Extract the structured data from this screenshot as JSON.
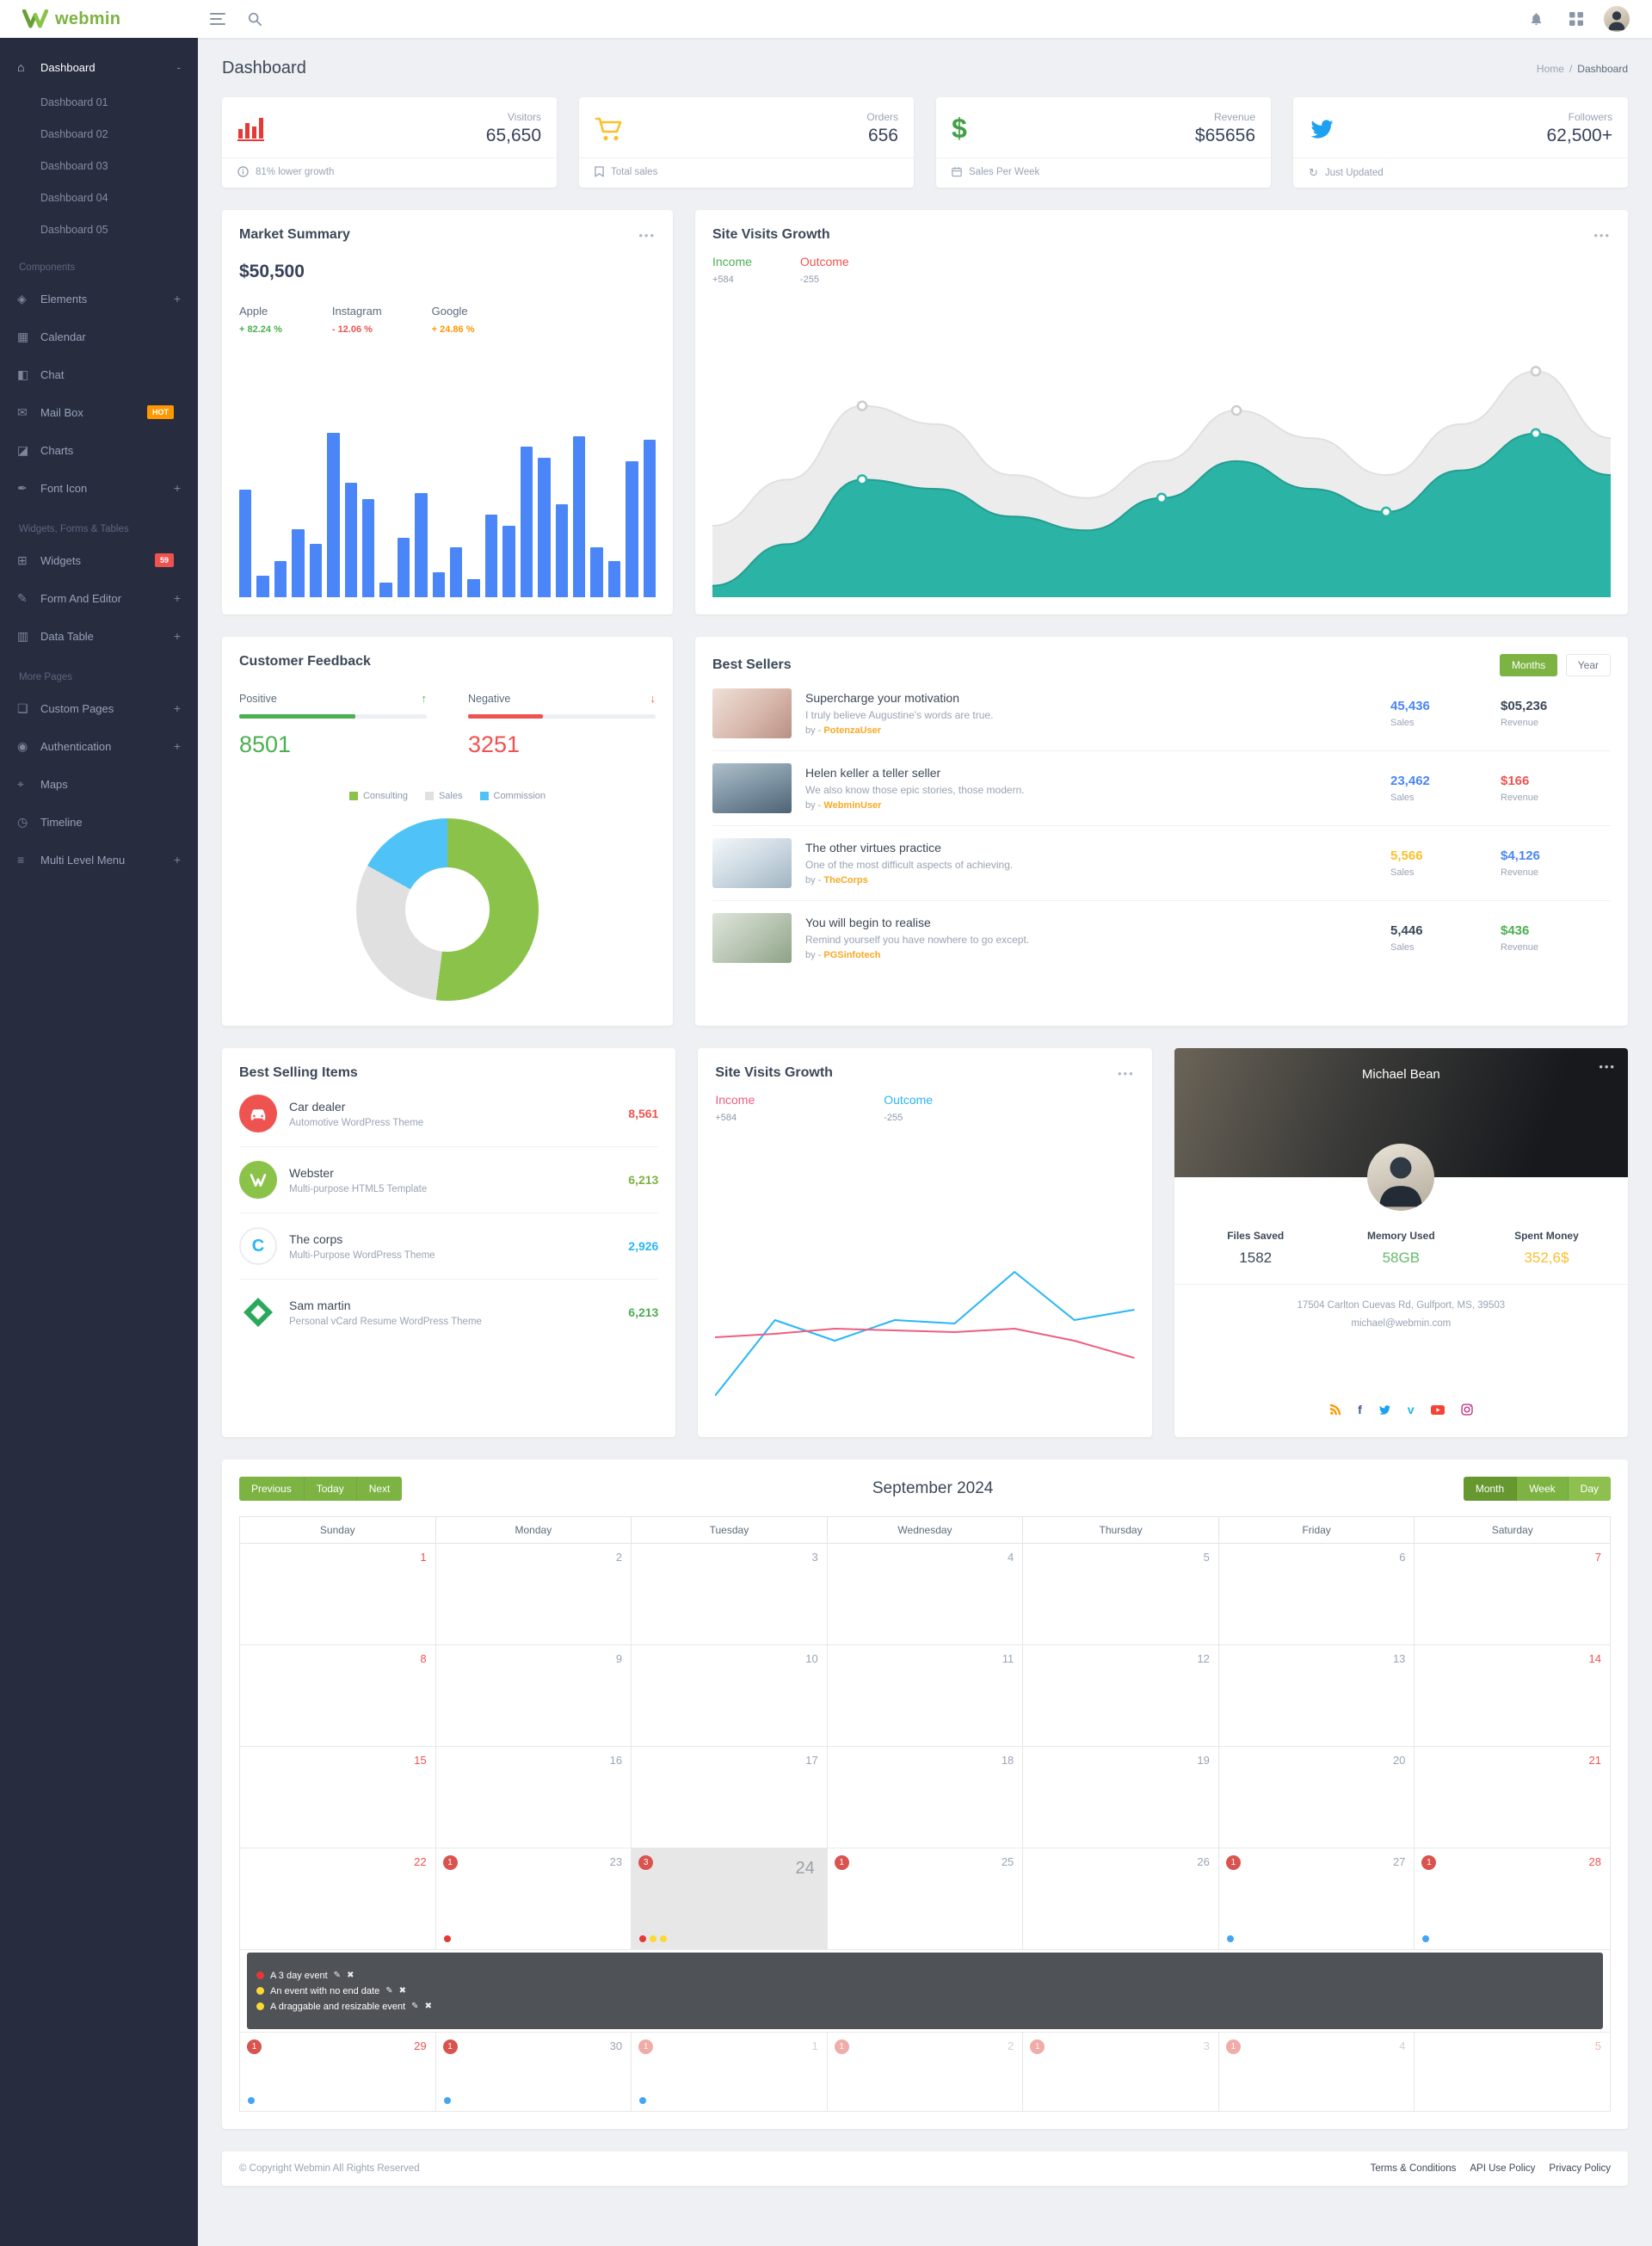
{
  "theme": {
    "accent": "#7cb342",
    "accent_dark": "#66982f",
    "accent_light": "#8dc04f",
    "sidebar_bg": "#272c3f",
    "author_color": "#f9a825"
  },
  "topbar": {
    "brand": "webmin"
  },
  "sidebar": {
    "icon_glyphs": {
      "home": "⌂",
      "elements": "◈",
      "calendar": "▦",
      "chat": "◧",
      "mail": "✉",
      "charts": "◪",
      "font": "✒",
      "widgets": "⊞",
      "form": "✎",
      "table": "▥",
      "pages": "❏",
      "auth": "◉",
      "maps": "⌖",
      "timeline": "◷",
      "multilevel": "≡"
    },
    "sections": [
      {
        "header": null,
        "items": [
          {
            "label": "Dashboard",
            "icon": "home",
            "expand": "-",
            "active": true,
            "children": [
              "Dashboard 01",
              "Dashboard 02",
              "Dashboard 03",
              "Dashboard 04",
              "Dashboard 05"
            ]
          }
        ]
      },
      {
        "header": "Components",
        "items": [
          {
            "label": "Elements",
            "icon": "elements",
            "expand": "+"
          },
          {
            "label": "Calendar",
            "icon": "calendar"
          },
          {
            "label": "Chat",
            "icon": "chat"
          },
          {
            "label": "Mail Box",
            "icon": "mail",
            "badge": {
              "text": "HOT",
              "color": "#ff9800"
            }
          },
          {
            "label": "Charts",
            "icon": "charts"
          },
          {
            "label": "Font Icon",
            "icon": "font",
            "expand": "+"
          }
        ]
      },
      {
        "header": "Widgets, Forms & Tables",
        "items": [
          {
            "label": "Widgets",
            "icon": "widgets",
            "badge": {
              "text": "59",
              "color": "#ef5350"
            }
          },
          {
            "label": "Form And Editor",
            "icon": "form",
            "expand": "+"
          },
          {
            "label": "Data Table",
            "icon": "table",
            "expand": "+"
          }
        ]
      },
      {
        "header": "More Pages",
        "items": [
          {
            "label": "Custom Pages",
            "icon": "pages",
            "expand": "+"
          },
          {
            "label": "Authentication",
            "icon": "auth",
            "expand": "+"
          },
          {
            "label": "Maps",
            "icon": "maps"
          },
          {
            "label": "Timeline",
            "icon": "timeline"
          },
          {
            "label": "Multi Level Menu",
            "icon": "multilevel",
            "expand": "+"
          }
        ]
      }
    ]
  },
  "page": {
    "title": "Dashboard",
    "breadcrumb_home": "Home",
    "breadcrumb_sep": "/",
    "breadcrumb_current": "Dashboard"
  },
  "stats": [
    {
      "label": "Visitors",
      "value": "65,650",
      "footer": "81% lower growth"
    },
    {
      "label": "Orders",
      "value": "656",
      "footer": "Total sales"
    },
    {
      "label": "Revenue",
      "value": "$65656",
      "footer": "Sales Per Week"
    },
    {
      "label": "Followers",
      "value": "62,500+",
      "footer": "Just Updated"
    }
  ],
  "market_summary": {
    "title": "Market Summary",
    "amount": "$50,500",
    "stocks": [
      {
        "name": "Apple",
        "change": "+ 82.24 %",
        "color": "#4caf50"
      },
      {
        "name": "Instagram",
        "change": "- 12.06 %",
        "color": "#ef5350"
      },
      {
        "name": "Google",
        "change": "+ 24.86 %",
        "color": "#ff9800"
      }
    ]
  },
  "site_visits": {
    "title": "Site Visits Growth",
    "income_label": "Income",
    "income_value": "+584",
    "income_color": "#4caf50",
    "outcome_label": "Outcome",
    "outcome_value": "-255",
    "outcome_color": "#ef5350"
  },
  "customer_feedback": {
    "title": "Customer Feedback",
    "positive_label": "Positive",
    "positive_value": "8501",
    "positive_color": "#4caf50",
    "negative_label": "Negative",
    "negative_value": "3251",
    "negative_color": "#ef5350",
    "legend": [
      {
        "label": "Consulting",
        "color": "#8bc34a"
      },
      {
        "label": "Sales",
        "color": "#e0e0e0"
      },
      {
        "label": "Commission",
        "color": "#4fc3f7"
      }
    ]
  },
  "best_sellers": {
    "title": "Best Sellers",
    "months_btn": "Months",
    "year_btn": "Year",
    "by_prefix": "by -",
    "sales_label": "Sales",
    "revenue_label": "Revenue",
    "items": [
      {
        "title": "Supercharge your motivation",
        "desc": "I truly believe Augustine's words are true.",
        "author": "PotenzaUser",
        "sales": "45,436",
        "sales_color": "#4a86f7",
        "revenue": "$05,236",
        "revenue_color": "#3c4858"
      },
      {
        "title": "Helen keller a teller seller",
        "desc": "We also know those epic stories, those modern.",
        "author": "WebminUser",
        "sales": "23,462",
        "sales_color": "#4a86f7",
        "revenue": "$166",
        "revenue_color": "#ef5350"
      },
      {
        "title": "The other virtues practice",
        "desc": "One of the most difficult aspects of achieving.",
        "author": "TheCorps",
        "sales": "5,566",
        "sales_color": "#fbc02d",
        "revenue": "$4,126",
        "revenue_color": "#4a86f7"
      },
      {
        "title": "You will begin to realise",
        "desc": "Remind yourself you have nowhere to go except.",
        "author": "PGSinfotech",
        "sales": "5,446",
        "sales_color": "#3c4858",
        "revenue": "$436",
        "revenue_color": "#4caf50"
      }
    ]
  },
  "best_items": {
    "title": "Best Selling Items",
    "items": [
      {
        "name": "Car dealer",
        "desc": "Automotive WordPress Theme",
        "value": "8,561",
        "color": "#ef5350",
        "icon_bg": "#ef5350"
      },
      {
        "name": "Webster",
        "desc": "Multi-purpose HTML5 Template",
        "value": "6,213",
        "color": "#7cb342",
        "icon_bg": "#8bc34a"
      },
      {
        "name": "The corps",
        "desc": "Multi-Purpose WordPress Theme",
        "value": "2,926",
        "color": "#29b6f6",
        "icon_bg": "#ffffff"
      },
      {
        "name": "Sam martin",
        "desc": "Personal vCard Resume WordPress Theme",
        "value": "6,213",
        "color": "#4caf50",
        "icon_bg": "#ffffff"
      }
    ]
  },
  "mini_visits": {
    "title": "Site Visits Growth",
    "income_label": "Income",
    "income_value": "+584",
    "income_color": "#ec5f80",
    "outcome_label": "Outcome",
    "outcome_value": "-255",
    "outcome_color": "#29b6f6"
  },
  "profile": {
    "name": "Michael Bean",
    "stats": [
      {
        "label": "Files Saved",
        "value": "1582",
        "color": "#3c4858"
      },
      {
        "label": "Memory Used",
        "value": "58GB",
        "color": "#66bb6a"
      },
      {
        "label": "Spent Money",
        "value": "352,6$",
        "color": "#fbc02d"
      }
    ],
    "address": "17504 Carlton Cuevas Rd, Gulfport, MS, 39503",
    "email": "michael@webmin.com",
    "socials": [
      {
        "name": "rss",
        "color": "#ff9800"
      },
      {
        "name": "facebook",
        "color": "#3b5998"
      },
      {
        "name": "twitter",
        "color": "#1da1f2"
      },
      {
        "name": "vimeo",
        "color": "#1ab7ea"
      },
      {
        "name": "youtube",
        "color": "#f44336"
      },
      {
        "name": "instagram",
        "color": "#c13584"
      }
    ]
  },
  "calendar": {
    "prev": "Previous",
    "today_btn": "Today",
    "next": "Next",
    "title": "September 2024",
    "views": [
      "Month",
      "Week",
      "Day"
    ],
    "day_headers": [
      "Sunday",
      "Monday",
      "Tuesday",
      "Wednesday",
      "Thursday",
      "Friday",
      "Saturday"
    ],
    "band_after_week": 3,
    "band_events": [
      {
        "color": "#e53935",
        "label": "A 3 day event"
      },
      {
        "color": "#fdd835",
        "label": "An event with no end date"
      },
      {
        "color": "#fdd835",
        "label": "A draggable and resizable event"
      }
    ],
    "weeks": [
      [
        {
          "d": 1
        },
        {
          "d": 2
        },
        {
          "d": 3
        },
        {
          "d": 4
        },
        {
          "d": 5
        },
        {
          "d": 6
        },
        {
          "d": 7
        }
      ],
      [
        {
          "d": 8
        },
        {
          "d": 9
        },
        {
          "d": 10
        },
        {
          "d": 11
        },
        {
          "d": 12
        },
        {
          "d": 13
        },
        {
          "d": 14
        }
      ],
      [
        {
          "d": 15
        },
        {
          "d": 16
        },
        {
          "d": 17
        },
        {
          "d": 18
        },
        {
          "d": 19
        },
        {
          "d": 20
        },
        {
          "d": 21
        }
      ],
      [
        {
          "d": 22
        },
        {
          "d": 23,
          "badge": "1",
          "dots": [
            "#e53935"
          ]
        },
        {
          "d": 24,
          "today": true,
          "badge": "3",
          "dots": [
            "#e53935",
            "#fdd835",
            "#fdd835"
          ]
        },
        {
          "d": 25,
          "badge": "1"
        },
        {
          "d": 26
        },
        {
          "d": 27,
          "badge": "1",
          "dots": [
            "#42a5f5"
          ]
        },
        {
          "d": 28,
          "badge": "1",
          "dots": [
            "#42a5f5"
          ]
        }
      ],
      [
        {
          "d": 29,
          "badge": "1",
          "dots": [
            "#42a5f5"
          ]
        },
        {
          "d": 30,
          "badge": "1",
          "dots": [
            "#42a5f5"
          ]
        },
        {
          "d": 1,
          "muted": true,
          "badge": "1",
          "pale": true,
          "dots": [
            "#42a5f5"
          ]
        },
        {
          "d": 2,
          "muted": true,
          "badge": "1",
          "pale": true
        },
        {
          "d": 3,
          "muted": true,
          "badge": "1",
          "pale": true
        },
        {
          "d": 4,
          "muted": true,
          "badge": "1",
          "pale": true
        },
        {
          "d": 5,
          "muted": true
        }
      ]
    ]
  },
  "footer": {
    "copyright": "© Copyright Webmin All Rights Reserved",
    "links": [
      "Terms & Conditions",
      "API Use Policy",
      "Privacy Policy"
    ]
  },
  "chart_data": [
    {
      "id": "market-bars",
      "type": "bar",
      "title": "Market Summary",
      "color": "#4a86f7",
      "ylim": [
        0,
        100
      ],
      "values": [
        60,
        12,
        20,
        38,
        30,
        92,
        64,
        55,
        8,
        33,
        58,
        14,
        28,
        10,
        46,
        40,
        84,
        78,
        52,
        90,
        28,
        20,
        76,
        88
      ]
    },
    {
      "id": "site-visits-area",
      "type": "area",
      "title": "Site Visits Growth",
      "axes": "hidden",
      "series": [
        {
          "name": "Outcome",
          "color": "#ececec",
          "stroke": "#e0e0e0",
          "marker_stroke": "#cccccc",
          "markers": [
            2,
            7,
            11
          ],
          "values": [
            28,
            48,
            80,
            72,
            50,
            40,
            56,
            78,
            66,
            50,
            72,
            95,
            66
          ]
        },
        {
          "name": "Income",
          "color": "#2bb3a5",
          "stroke": "#259d91",
          "marker_stroke": "#2bb3a5",
          "markers": [
            2,
            6,
            9,
            11
          ],
          "values": [
            2,
            20,
            48,
            44,
            32,
            26,
            40,
            56,
            44,
            34,
            52,
            68,
            50
          ]
        }
      ]
    },
    {
      "id": "feedback-donut",
      "type": "pie",
      "labels": [
        "Consulting",
        "Sales",
        "Commission"
      ],
      "values": [
        52,
        31,
        17
      ],
      "colors": [
        "#8bc34a",
        "#e0e0e0",
        "#4fc3f7"
      ]
    },
    {
      "id": "visits-lines",
      "type": "line",
      "title": "Site Visits Growth",
      "axes": "hidden",
      "series": [
        {
          "name": "Outcome",
          "color": "#29b6f6",
          "values": [
            8,
            52,
            40,
            52,
            50,
            80,
            52,
            58
          ]
        },
        {
          "name": "Income",
          "color": "#ec5f80",
          "values": [
            42,
            44,
            47,
            46,
            45,
            47,
            40,
            30
          ]
        }
      ]
    }
  ]
}
